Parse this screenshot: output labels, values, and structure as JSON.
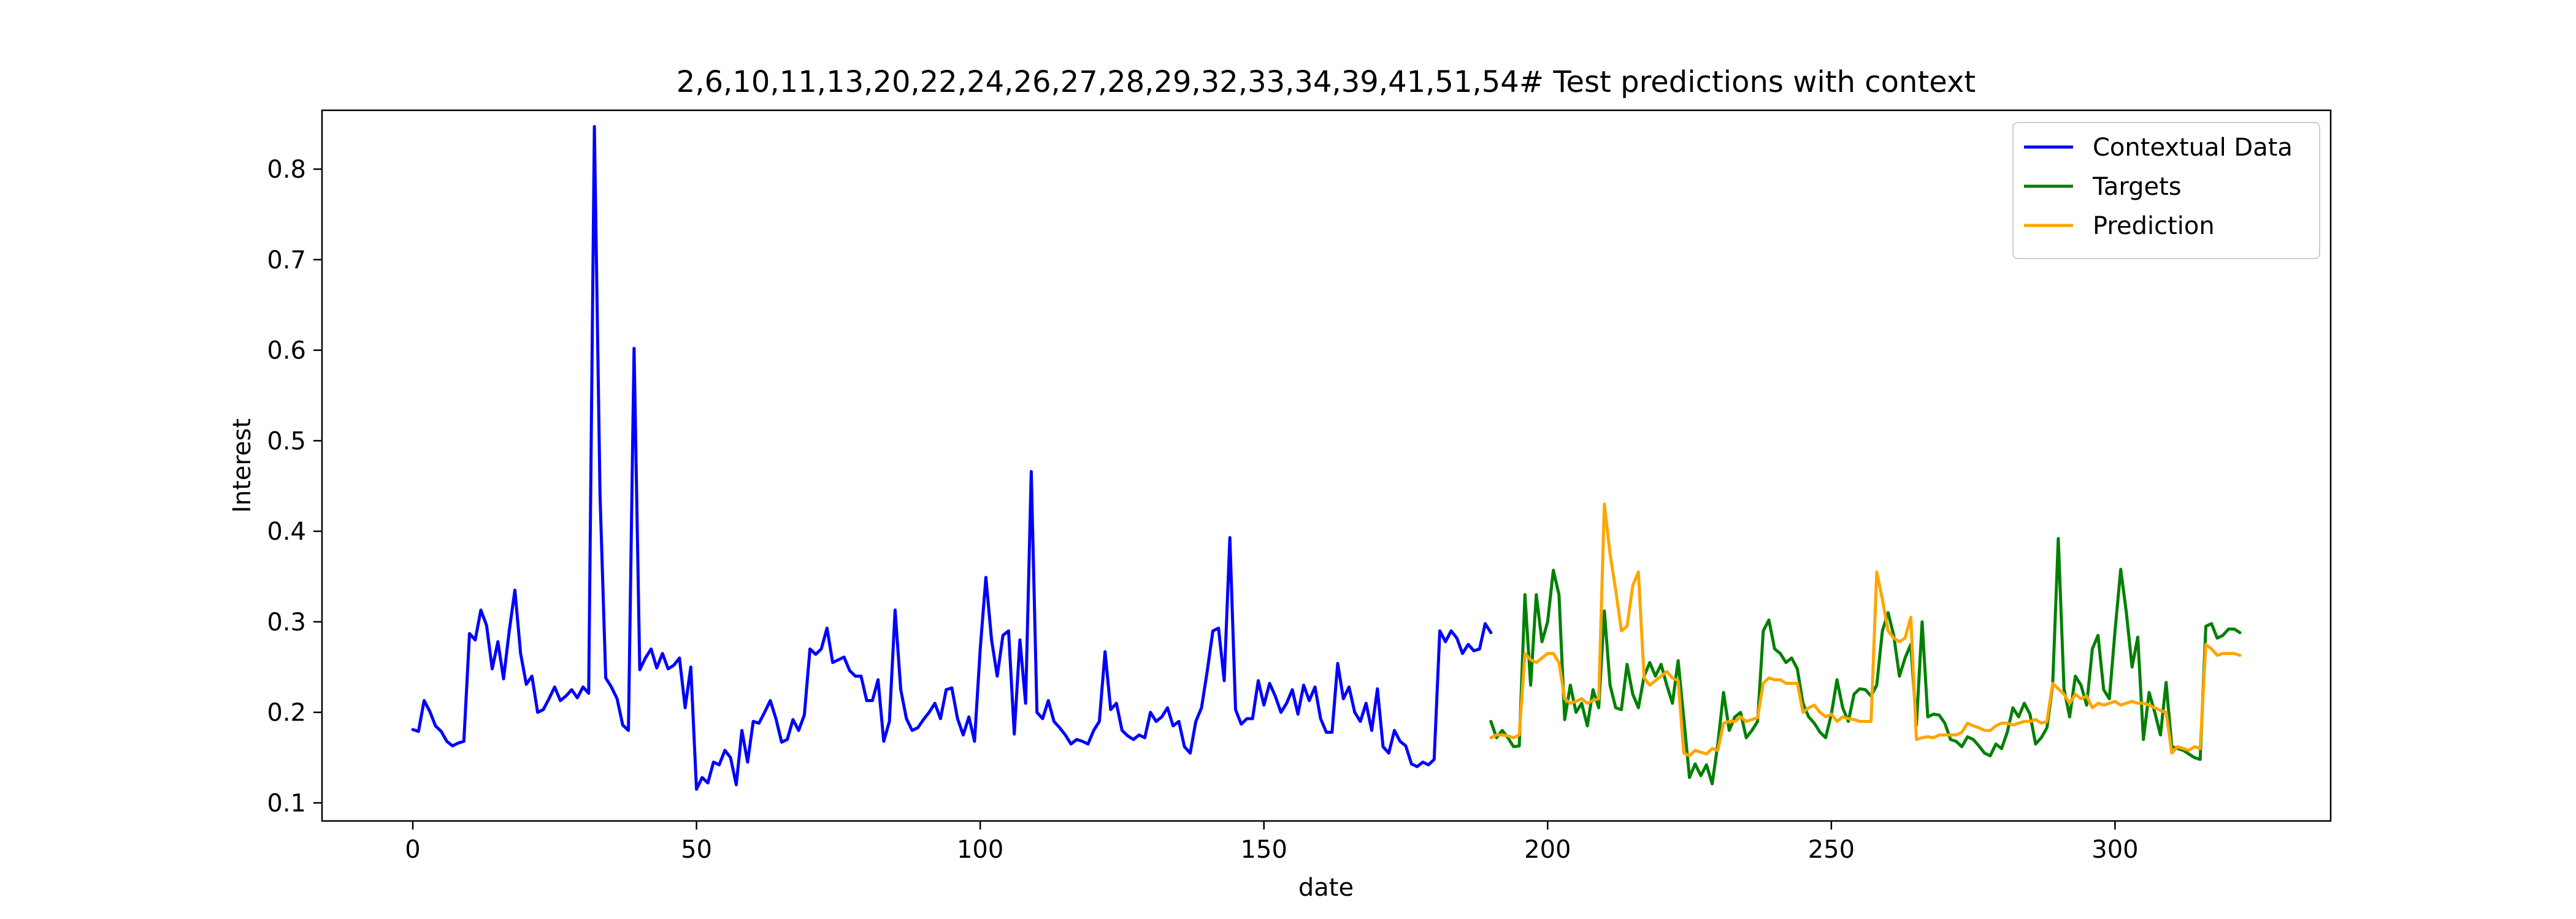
{
  "chart_data": {
    "type": "line",
    "title": "2,6,10,11,13,20,22,24,26,27,28,29,32,33,34,39,41,51,54# Test predictions with context",
    "xlabel": "date",
    "ylabel": "Interest",
    "xlim": [
      -16,
      338
    ],
    "ylim": [
      0.08,
      0.865
    ],
    "xticks": [
      0,
      50,
      100,
      150,
      200,
      250,
      300
    ],
    "yticks": [
      0.1,
      0.2,
      0.3,
      0.4,
      0.5,
      0.6,
      0.7,
      0.8
    ],
    "grid": false,
    "legend_position": "top-right",
    "series": [
      {
        "name": "Contextual Data",
        "color": "#0000ff",
        "x_start": 0,
        "values": [
          0.181,
          0.179,
          0.213,
          0.201,
          0.185,
          0.179,
          0.168,
          0.163,
          0.166,
          0.168,
          0.287,
          0.28,
          0.313,
          0.296,
          0.248,
          0.278,
          0.237,
          0.29,
          0.335,
          0.265,
          0.231,
          0.24,
          0.2,
          0.203,
          0.215,
          0.228,
          0.213,
          0.218,
          0.225,
          0.216,
          0.228,
          0.221,
          0.847,
          0.44,
          0.238,
          0.228,
          0.215,
          0.186,
          0.18,
          0.602,
          0.247,
          0.26,
          0.27,
          0.249,
          0.265,
          0.248,
          0.252,
          0.26,
          0.205,
          0.25,
          0.115,
          0.128,
          0.122,
          0.145,
          0.142,
          0.158,
          0.15,
          0.12,
          0.18,
          0.145,
          0.19,
          0.188,
          0.2,
          0.213,
          0.193,
          0.167,
          0.17,
          0.192,
          0.18,
          0.197,
          0.27,
          0.264,
          0.27,
          0.293,
          0.255,
          0.258,
          0.261,
          0.246,
          0.24,
          0.24,
          0.213,
          0.213,
          0.236,
          0.168,
          0.19,
          0.313,
          0.225,
          0.193,
          0.18,
          0.183,
          0.192,
          0.2,
          0.21,
          0.193,
          0.225,
          0.227,
          0.193,
          0.175,
          0.195,
          0.168,
          0.27,
          0.349,
          0.28,
          0.24,
          0.285,
          0.29,
          0.176,
          0.28,
          0.21,
          0.466,
          0.2,
          0.193,
          0.213,
          0.19,
          0.183,
          0.175,
          0.165,
          0.17,
          0.168,
          0.165,
          0.18,
          0.19,
          0.267,
          0.203,
          0.21,
          0.18,
          0.174,
          0.17,
          0.175,
          0.172,
          0.2,
          0.19,
          0.195,
          0.205,
          0.185,
          0.19,
          0.162,
          0.155,
          0.19,
          0.205,
          0.245,
          0.29,
          0.293,
          0.235,
          0.393,
          0.203,
          0.187,
          0.193,
          0.193,
          0.235,
          0.208,
          0.232,
          0.218,
          0.2,
          0.21,
          0.225,
          0.198,
          0.23,
          0.213,
          0.228,
          0.193,
          0.178,
          0.178,
          0.254,
          0.215,
          0.228,
          0.2,
          0.19,
          0.21,
          0.18,
          0.226,
          0.162,
          0.155,
          0.18,
          0.168,
          0.163,
          0.143,
          0.14,
          0.145,
          0.142,
          0.148,
          0.29,
          0.278,
          0.29,
          0.282,
          0.265,
          0.275,
          0.268,
          0.27,
          0.298,
          0.288
        ]
      },
      {
        "name": "Targets",
        "color": "#008000",
        "x_start": 190,
        "values": [
          0.19,
          0.172,
          0.18,
          0.172,
          0.162,
          0.163,
          0.33,
          0.23,
          0.33,
          0.278,
          0.3,
          0.357,
          0.33,
          0.192,
          0.23,
          0.2,
          0.21,
          0.185,
          0.225,
          0.205,
          0.312,
          0.23,
          0.205,
          0.203,
          0.253,
          0.22,
          0.205,
          0.24,
          0.255,
          0.24,
          0.253,
          0.23,
          0.21,
          0.257,
          0.193,
          0.128,
          0.143,
          0.13,
          0.142,
          0.121,
          0.165,
          0.222,
          0.18,
          0.195,
          0.2,
          0.172,
          0.18,
          0.19,
          0.29,
          0.302,
          0.27,
          0.265,
          0.255,
          0.26,
          0.248,
          0.21,
          0.195,
          0.188,
          0.178,
          0.172,
          0.198,
          0.236,
          0.205,
          0.19,
          0.22,
          0.226,
          0.225,
          0.218,
          0.23,
          0.29,
          0.31,
          0.285,
          0.24,
          0.26,
          0.275,
          0.186,
          0.3,
          0.195,
          0.198,
          0.197,
          0.188,
          0.17,
          0.168,
          0.162,
          0.173,
          0.17,
          0.163,
          0.155,
          0.152,
          0.165,
          0.16,
          0.178,
          0.205,
          0.195,
          0.21,
          0.198,
          0.165,
          0.172,
          0.183,
          0.23,
          0.392,
          0.226,
          0.195,
          0.24,
          0.23,
          0.208,
          0.27,
          0.285,
          0.225,
          0.215,
          0.29,
          0.358,
          0.31,
          0.25,
          0.283,
          0.17,
          0.222,
          0.2,
          0.175,
          0.233,
          0.162,
          0.16,
          0.158,
          0.154,
          0.15,
          0.148,
          0.295,
          0.298,
          0.282,
          0.285,
          0.292,
          0.292,
          0.288
        ]
      },
      {
        "name": "Prediction",
        "color": "#ffa500",
        "x_start": 190,
        "values": [
          0.172,
          0.175,
          0.175,
          0.174,
          0.172,
          0.175,
          0.265,
          0.258,
          0.255,
          0.26,
          0.265,
          0.265,
          0.255,
          0.215,
          0.21,
          0.212,
          0.215,
          0.21,
          0.213,
          0.215,
          0.43,
          0.375,
          0.335,
          0.29,
          0.295,
          0.34,
          0.355,
          0.238,
          0.23,
          0.235,
          0.24,
          0.245,
          0.238,
          0.235,
          0.155,
          0.152,
          0.158,
          0.156,
          0.154,
          0.16,
          0.158,
          0.188,
          0.19,
          0.19,
          0.195,
          0.19,
          0.192,
          0.194,
          0.232,
          0.238,
          0.236,
          0.236,
          0.232,
          0.232,
          0.232,
          0.2,
          0.205,
          0.208,
          0.2,
          0.195,
          0.198,
          0.19,
          0.195,
          0.193,
          0.192,
          0.19,
          0.19,
          0.19,
          0.355,
          0.325,
          0.29,
          0.282,
          0.278,
          0.282,
          0.305,
          0.17,
          0.172,
          0.173,
          0.172,
          0.175,
          0.175,
          0.175,
          0.175,
          0.178,
          0.188,
          0.185,
          0.183,
          0.18,
          0.18,
          0.185,
          0.188,
          0.188,
          0.186,
          0.188,
          0.19,
          0.19,
          0.192,
          0.188,
          0.19,
          0.232,
          0.226,
          0.22,
          0.21,
          0.22,
          0.215,
          0.218,
          0.205,
          0.21,
          0.208,
          0.21,
          0.212,
          0.208,
          0.21,
          0.212,
          0.21,
          0.21,
          0.208,
          0.205,
          0.202,
          0.2,
          0.155,
          0.162,
          0.16,
          0.158,
          0.162,
          0.16,
          0.275,
          0.27,
          0.263,
          0.265,
          0.265,
          0.265,
          0.263
        ]
      }
    ]
  }
}
